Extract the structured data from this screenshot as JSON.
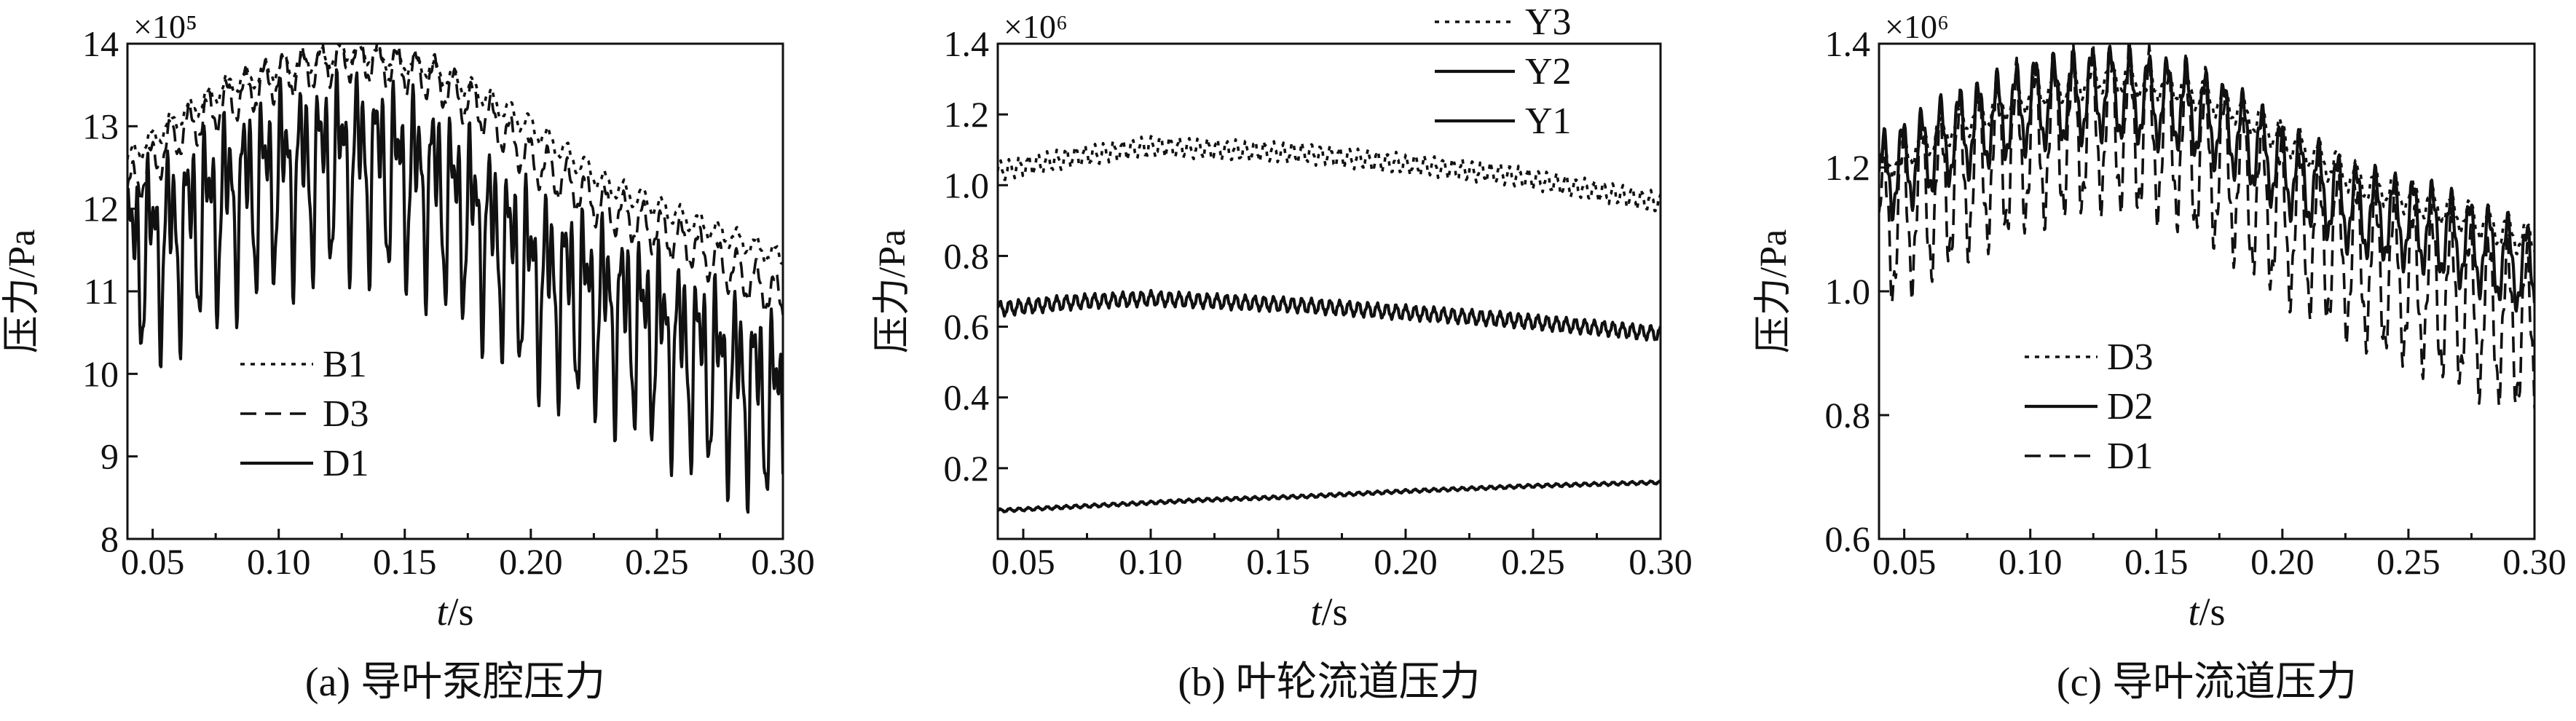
{
  "charts": [
    {
      "type": "line",
      "caption": "(a) 导叶泵腔压力",
      "ylabel": "压力/Pa",
      "xlabel_italic": "t",
      "xlabel_unit": "/s",
      "multiplier": "×10⁵",
      "xlim": [
        0.04,
        0.3
      ],
      "ylim": [
        8,
        14
      ],
      "xticks": [
        "0.05",
        "0.10",
        "0.15",
        "0.20",
        "0.25",
        "0.30"
      ],
      "yticks": [
        "8",
        "9",
        "10",
        "11",
        "12",
        "13",
        "14"
      ],
      "legend": [
        "B1",
        "D3",
        "D1"
      ],
      "chart_data": {
        "type": "line",
        "x_range": [
          0.04,
          0.3
        ],
        "series": [
          {
            "name": "B1",
            "style": "dotted",
            "points": [
              [
                0.04,
                12.6
              ],
              [
                0.06,
                13.1
              ],
              [
                0.08,
                13.5
              ],
              [
                0.1,
                13.7
              ],
              [
                0.13,
                13.9
              ],
              [
                0.16,
                13.7
              ],
              [
                0.18,
                13.4
              ],
              [
                0.2,
                13.0
              ],
              [
                0.23,
                12.3
              ],
              [
                0.26,
                11.9
              ],
              [
                0.3,
                11.4
              ]
            ],
            "osc_amp": 0.12,
            "period": 0.0075
          },
          {
            "name": "D3",
            "style": "dashed",
            "points": [
              [
                0.04,
                12.2
              ],
              [
                0.06,
                12.9
              ],
              [
                0.08,
                13.3
              ],
              [
                0.1,
                13.6
              ],
              [
                0.13,
                13.85
              ],
              [
                0.16,
                13.6
              ],
              [
                0.18,
                13.2
              ],
              [
                0.2,
                12.6
              ],
              [
                0.23,
                12.0
              ],
              [
                0.26,
                11.6
              ],
              [
                0.3,
                10.9
              ]
            ],
            "osc_amp": 0.25,
            "period": 0.0075
          },
          {
            "name": "D1",
            "style": "solid",
            "points": [
              [
                0.04,
                11.4
              ],
              [
                0.06,
                11.7
              ],
              [
                0.08,
                12.1
              ],
              [
                0.1,
                12.4
              ],
              [
                0.13,
                12.6
              ],
              [
                0.16,
                12.3
              ],
              [
                0.18,
                11.8
              ],
              [
                0.2,
                11.2
              ],
              [
                0.23,
                10.8
              ],
              [
                0.26,
                10.3
              ],
              [
                0.3,
                9.6
              ]
            ],
            "osc_amp": 1.3,
            "period": 0.0075
          }
        ]
      }
    },
    {
      "type": "line",
      "caption": "(b) 叶轮流道压力",
      "ylabel": "压力/Pa",
      "xlabel_italic": "t",
      "xlabel_unit": "/s",
      "multiplier": "×10⁶",
      "xlim": [
        0.04,
        0.3
      ],
      "ylim": [
        0,
        1.4
      ],
      "xticks": [
        "0.05",
        "0.10",
        "0.15",
        "0.20",
        "0.25",
        "0.30"
      ],
      "yticks": [
        "0",
        "0.2",
        "0.4",
        "0.6",
        "0.8",
        "1.0",
        "1.2",
        "1.4"
      ],
      "ytick_values": [
        0,
        0.2,
        0.4,
        0.6,
        0.8,
        1.0,
        1.2,
        1.4
      ],
      "hide_first_ytick_label": true,
      "legend": [
        "Y3",
        "Y2",
        "Y1"
      ],
      "chart_data": {
        "type": "line",
        "x_range": [
          0.04,
          0.3
        ],
        "series": [
          {
            "name": "Y3",
            "style": "dotted",
            "points": [
              [
                0.04,
                1.04
              ],
              [
                0.07,
                1.08
              ],
              [
                0.1,
                1.11
              ],
              [
                0.13,
                1.1
              ],
              [
                0.16,
                1.09
              ],
              [
                0.2,
                1.06
              ],
              [
                0.24,
                1.03
              ],
              [
                0.27,
                0.99
              ],
              [
                0.3,
                0.95
              ]
            ],
            "osc_amp": 0.025,
            "period": 0.0037
          },
          {
            "name": "Y2",
            "style": "solid",
            "points": [
              [
                0.04,
                0.65
              ],
              [
                0.07,
                0.67
              ],
              [
                0.1,
                0.68
              ],
              [
                0.13,
                0.67
              ],
              [
                0.16,
                0.66
              ],
              [
                0.2,
                0.64
              ],
              [
                0.24,
                0.62
              ],
              [
                0.27,
                0.6
              ],
              [
                0.3,
                0.58
              ]
            ],
            "osc_amp": 0.018,
            "period": 0.0037
          },
          {
            "name": "Y1",
            "style": "solid",
            "points": [
              [
                0.04,
                0.08
              ],
              [
                0.08,
                0.095
              ],
              [
                0.12,
                0.11
              ],
              [
                0.16,
                0.12
              ],
              [
                0.2,
                0.135
              ],
              [
                0.25,
                0.15
              ],
              [
                0.3,
                0.16
              ]
            ],
            "osc_amp": 0.004,
            "period": 0.0037
          }
        ]
      }
    },
    {
      "type": "line",
      "caption": "(c) 导叶流道压力",
      "ylabel": "压力/Pa",
      "xlabel_italic": "t",
      "xlabel_unit": "/s",
      "multiplier": "×10⁶",
      "xlim": [
        0.04,
        0.3
      ],
      "ylim": [
        0.6,
        1.4
      ],
      "xticks": [
        "0.05",
        "0.10",
        "0.15",
        "0.20",
        "0.25",
        "0.30"
      ],
      "yticks": [
        "0.6",
        "0.8",
        "1.0",
        "1.2",
        "1.4"
      ],
      "ytick_values": [
        0.6,
        0.8,
        1.0,
        1.2,
        1.4
      ],
      "legend": [
        "D3",
        "D2",
        "D1"
      ],
      "chart_data": {
        "type": "line",
        "x_range": [
          0.04,
          0.3
        ],
        "series": [
          {
            "name": "D3",
            "style": "dotted",
            "points": [
              [
                0.04,
                1.2
              ],
              [
                0.07,
                1.27
              ],
              [
                0.1,
                1.32
              ],
              [
                0.13,
                1.35
              ],
              [
                0.16,
                1.33
              ],
              [
                0.18,
                1.3
              ],
              [
                0.2,
                1.25
              ],
              [
                0.23,
                1.18
              ],
              [
                0.26,
                1.14
              ],
              [
                0.3,
                1.08
              ]
            ],
            "osc_amp": 0.025,
            "period": 0.0075
          },
          {
            "name": "D2",
            "style": "solid",
            "points": [
              [
                0.04,
                1.18
              ],
              [
                0.07,
                1.25
              ],
              [
                0.1,
                1.3
              ],
              [
                0.13,
                1.32
              ],
              [
                0.16,
                1.3
              ],
              [
                0.18,
                1.26
              ],
              [
                0.2,
                1.2
              ],
              [
                0.23,
                1.13
              ],
              [
                0.26,
                1.1
              ],
              [
                0.3,
                1.03
              ]
            ],
            "osc_amp": 0.065,
            "period": 0.0075
          },
          {
            "name": "D1",
            "style": "dashed",
            "points": [
              [
                0.04,
                1.1
              ],
              [
                0.07,
                1.18
              ],
              [
                0.1,
                1.24
              ],
              [
                0.13,
                1.27
              ],
              [
                0.16,
                1.24
              ],
              [
                0.18,
                1.19
              ],
              [
                0.2,
                1.12
              ],
              [
                0.23,
                1.05
              ],
              [
                0.26,
                1.0
              ],
              [
                0.3,
                0.93
              ]
            ],
            "osc_amp": 0.12,
            "period": 0.0075
          }
        ]
      }
    }
  ]
}
